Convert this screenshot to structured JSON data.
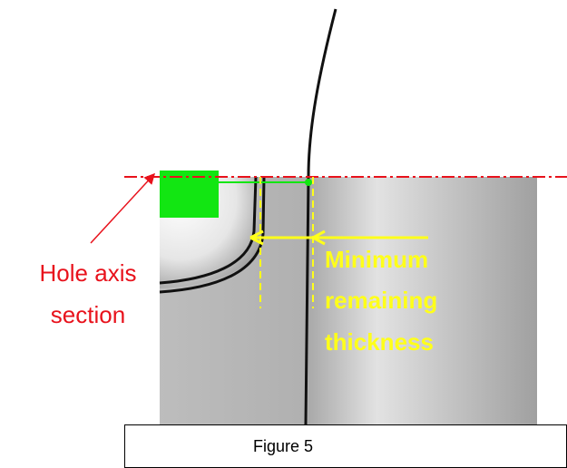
{
  "annotations": {
    "hole_axis": [
      "Hole axis",
      "section"
    ],
    "thickness": [
      "Minimum",
      "remaining",
      "thickness"
    ]
  },
  "caption": "Figure 5"
}
